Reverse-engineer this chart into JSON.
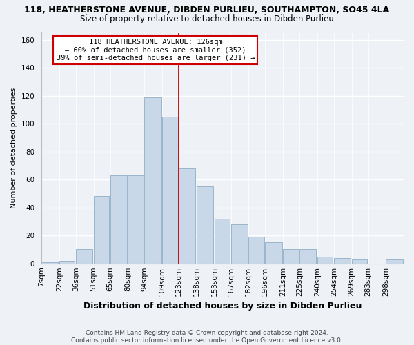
{
  "title1": "118, HEATHERSTONE AVENUE, DIBDEN PURLIEU, SOUTHAMPTON, SO45 4LA",
  "title2": "Size of property relative to detached houses in Dibden Purlieu",
  "xlabel": "Distribution of detached houses by size in Dibden Purlieu",
  "ylabel": "Number of detached properties",
  "bar_labels": [
    "7sqm",
    "22sqm",
    "36sqm",
    "51sqm",
    "65sqm",
    "80sqm",
    "94sqm",
    "109sqm",
    "123sqm",
    "138sqm",
    "153sqm",
    "167sqm",
    "182sqm",
    "196sqm",
    "211sqm",
    "225sqm",
    "240sqm",
    "254sqm",
    "269sqm",
    "283sqm",
    "298sqm"
  ],
  "bar_heights": [
    1,
    2,
    10,
    48,
    63,
    63,
    119,
    105,
    68,
    55,
    32,
    28,
    19,
    15,
    10,
    10,
    5,
    4,
    3,
    0,
    3
  ],
  "bar_color": "#c8d8e8",
  "bar_edge_color": "#9ab5cc",
  "property_line_color": "#cc0000",
  "annotation_title": "118 HEATHERSTONE AVENUE: 126sqm",
  "annotation_line1": "← 60% of detached houses are smaller (352)",
  "annotation_line2": "39% of semi-detached houses are larger (231) →",
  "annotation_box_edge_color": "#cc0000",
  "annotation_box_face_color": "#ffffff",
  "ylim": [
    0,
    165
  ],
  "yticks": [
    0,
    20,
    40,
    60,
    80,
    100,
    120,
    140,
    160
  ],
  "footer1": "Contains HM Land Registry data © Crown copyright and database right 2024.",
  "footer2": "Contains public sector information licensed under the Open Government Licence v3.0.",
  "bg_color": "#eef2f7",
  "title1_fontsize": 9,
  "title2_fontsize": 8.5,
  "ylabel_fontsize": 8,
  "xlabel_fontsize": 9,
  "tick_fontsize": 7.5,
  "footer_fontsize": 6.5
}
